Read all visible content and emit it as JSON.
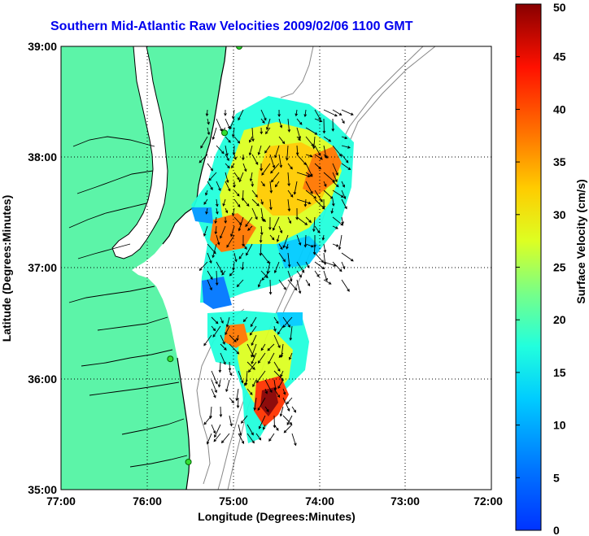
{
  "title": "Southern Mid-Atlantic Raw Velocities 2009/02/06 1100 GMT",
  "map": {
    "x_label": "Longitude (Degrees:Minutes)",
    "y_label": "Latitude (Degrees:Minutes)",
    "x_ticks": [
      "77:00",
      "76:00",
      "75:00",
      "74:00",
      "73:00",
      "72:00"
    ],
    "y_ticks": [
      "39:00",
      "38:00",
      "37:00",
      "36:00",
      "35:00"
    ],
    "lon_range": [
      -77,
      -72
    ],
    "lat_range": [
      35,
      39
    ],
    "land_color": "#5cf4a8",
    "water_color": "#ffffff",
    "stations": [
      {
        "lon": -74.93,
        "lat": 39.0
      },
      {
        "lon": -75.1,
        "lat": 38.22
      },
      {
        "lon": -75.73,
        "lat": 36.18
      },
      {
        "lon": -75.52,
        "lat": 35.25
      }
    ]
  },
  "colorbar": {
    "label": "Surface Velocity (cm/s)",
    "ticks": [
      "0",
      "5",
      "10",
      "15",
      "20",
      "25",
      "30",
      "35",
      "40",
      "45",
      "50"
    ],
    "range": [
      0,
      50
    ],
    "colormap": "jet"
  }
}
